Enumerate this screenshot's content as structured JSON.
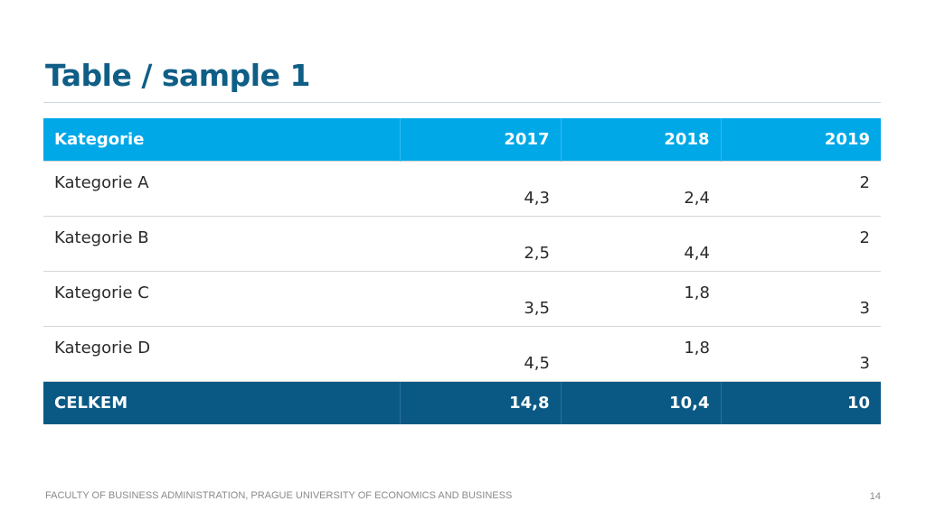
{
  "slide": {
    "title": "Table / sample 1",
    "footer": "FACULTY OF BUSINESS ADMINISTRATION, PRAGUE UNIVERSITY OF ECONOMICS AND BUSINESS",
    "page_number": "14"
  },
  "table": {
    "headers": [
      "Kategorie",
      "2017",
      "2018",
      "2019"
    ],
    "rows": [
      [
        "Kategorie A",
        "4,3",
        "2,4",
        "2"
      ],
      [
        "Kategorie B",
        "2,5",
        "4,4",
        "2"
      ],
      [
        "Kategorie C",
        "3,5",
        "1,8",
        "3"
      ],
      [
        "Kategorie D",
        "4,5",
        "1,8",
        "3"
      ]
    ],
    "total": [
      "CELKEM",
      "14,8",
      "10,4",
      "10"
    ]
  },
  "colors": {
    "title": "#0f5e86",
    "header_bg": "#00a8e8",
    "total_bg": "#0a5985"
  }
}
